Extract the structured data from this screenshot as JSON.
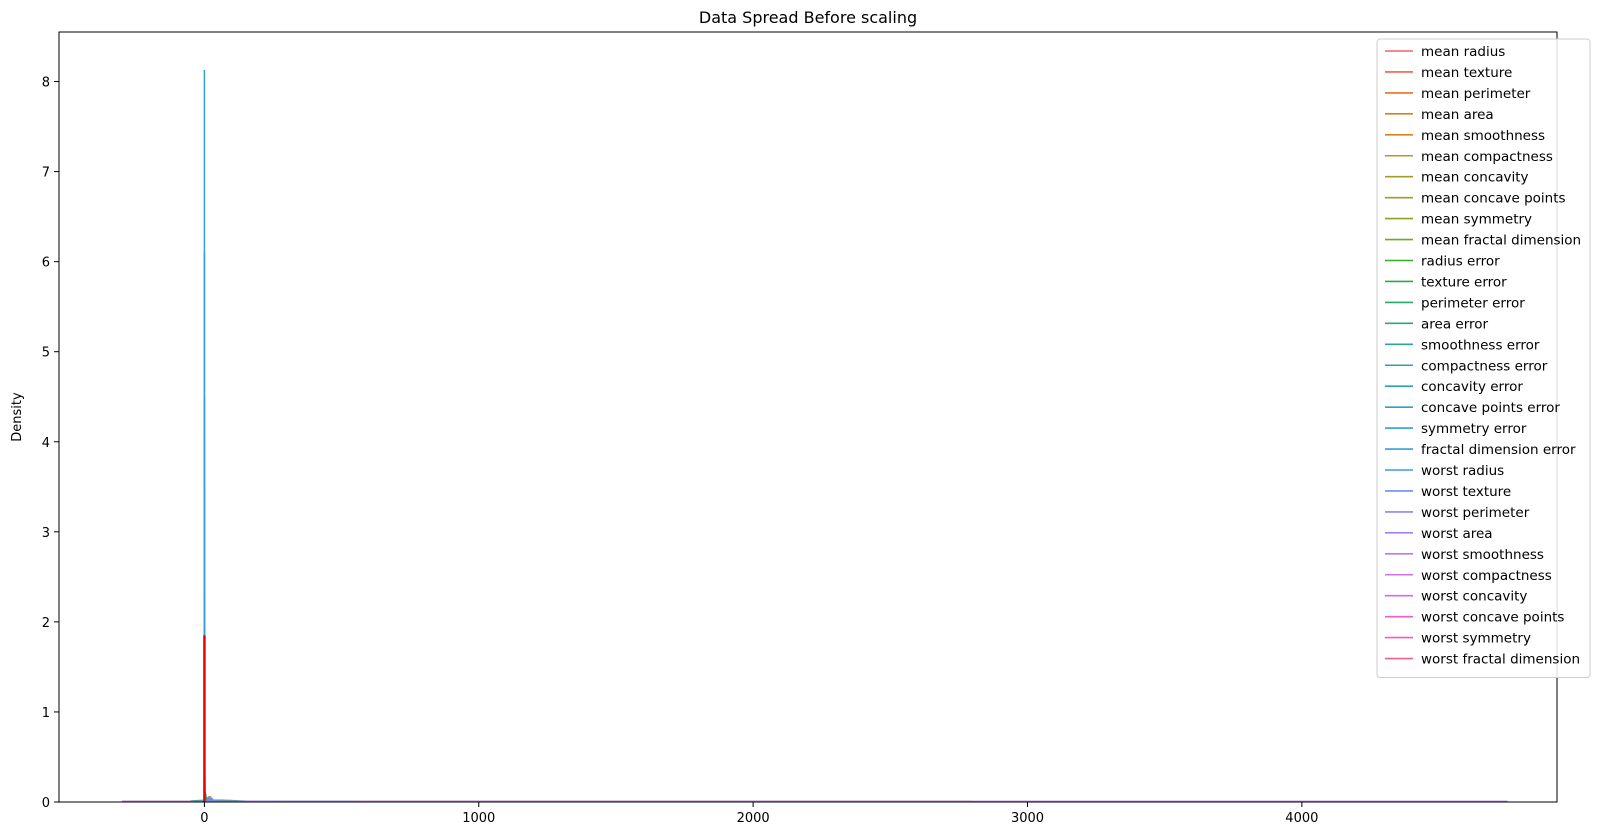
{
  "chart_data": {
    "type": "line",
    "title": "Data Spread Before scaling",
    "xlabel": "",
    "ylabel": "Density",
    "xlim": [
      -530,
      4930
    ],
    "ylim": [
      0,
      8.55
    ],
    "x_ticks": [
      0,
      1000,
      2000,
      3000,
      4000
    ],
    "y_ticks": [
      0,
      1,
      2,
      3,
      4,
      5,
      6,
      7,
      8
    ],
    "grid": false,
    "legend_position": "top-right",
    "series": [
      {
        "name": "mean radius",
        "color": "#f3616b",
        "peak_x": 14,
        "peak_y": 0.05,
        "extent": [
          2,
          34
        ]
      },
      {
        "name": "mean texture",
        "color": "#f06446",
        "peak_x": 19,
        "peak_y": 0.06,
        "extent": [
          5,
          45
        ]
      },
      {
        "name": "mean perimeter",
        "color": "#e87220",
        "peak_x": 92,
        "peak_y": 0.008,
        "extent": [
          20,
          210
        ]
      },
      {
        "name": "mean area",
        "color": "#de7d1c",
        "peak_x": 655,
        "peak_y": 0.0012,
        "extent": [
          -300,
          2800
        ]
      },
      {
        "name": "mean smoothness",
        "color": "#d6821e",
        "peak_x": 0.096,
        "peak_y": 0.4,
        "extent": [
          0.04,
          0.18
        ]
      },
      {
        "name": "mean compactness",
        "color": "#bd9426",
        "peak_x": 0.1,
        "peak_y": 0.3,
        "extent": [
          0,
          0.4
        ]
      },
      {
        "name": "mean concavity",
        "color": "#a89a25",
        "peak_x": 0.09,
        "peak_y": 0.3,
        "extent": [
          -0.1,
          0.5
        ]
      },
      {
        "name": "mean concave points",
        "color": "#9a9e25",
        "peak_x": 0.05,
        "peak_y": 0.4,
        "extent": [
          -0.05,
          0.25
        ]
      },
      {
        "name": "mean symmetry",
        "color": "#8aa325",
        "peak_x": 0.18,
        "peak_y": 0.6,
        "extent": [
          0.1,
          0.32
        ]
      },
      {
        "name": "mean fractal dimension",
        "color": "#6ea729",
        "peak_x": 0.063,
        "peak_y": 2.25,
        "extent": [
          0.04,
          0.1
        ]
      },
      {
        "name": "radius error",
        "color": "#34ab26",
        "peak_x": 0.4,
        "peak_y": 0.9,
        "extent": [
          0,
          3
        ]
      },
      {
        "name": "texture error",
        "color": "#2ba94f",
        "peak_x": 1.2,
        "peak_y": 0.3,
        "extent": [
          0,
          5
        ]
      },
      {
        "name": "perimeter error",
        "color": "#2aa76b",
        "peak_x": 2.9,
        "peak_y": 0.1,
        "extent": [
          0,
          22
        ]
      },
      {
        "name": "area error",
        "color": "#2ca682",
        "peak_x": 40,
        "peak_y": 0.02,
        "extent": [
          -50,
          550
        ]
      },
      {
        "name": "smoothness error",
        "color": "#2ea694",
        "peak_x": 0.007,
        "peak_y": 6.1,
        "extent": [
          0,
          0.03
        ]
      },
      {
        "name": "compactness error",
        "color": "#2da5a2",
        "peak_x": 0.025,
        "peak_y": 2.3,
        "extent": [
          0,
          0.14
        ]
      },
      {
        "name": "concavity error",
        "color": "#2da3b0",
        "peak_x": 0.03,
        "peak_y": 1.8,
        "extent": [
          0,
          0.4
        ]
      },
      {
        "name": "concave points error",
        "color": "#2fa2be",
        "peak_x": 0.012,
        "peak_y": 4.5,
        "extent": [
          0,
          0.05
        ]
      },
      {
        "name": "symmetry error",
        "color": "#30a1cc",
        "peak_x": 0.02,
        "peak_y": 4.0,
        "extent": [
          0,
          0.08
        ]
      },
      {
        "name": "fractal dimension error",
        "color": "#349fda",
        "peak_x": 0.004,
        "peak_y": 8.13,
        "extent": [
          0,
          0.03
        ]
      },
      {
        "name": "worst radius",
        "color": "#3d9ae5",
        "peak_x": 16,
        "peak_y": 0.04,
        "extent": [
          5,
          40
        ]
      },
      {
        "name": "worst texture",
        "color": "#6c8ef0",
        "peak_x": 25,
        "peak_y": 0.04,
        "extent": [
          8,
          52
        ]
      },
      {
        "name": "worst perimeter",
        "color": "#8c86f3",
        "peak_x": 107,
        "peak_y": 0.006,
        "extent": [
          30,
          270
        ]
      },
      {
        "name": "worst area",
        "color": "#a77ff5",
        "peak_x": 880,
        "peak_y": 0.0008,
        "extent": [
          -300,
          4750
        ]
      },
      {
        "name": "worst smoothness",
        "color": "#bd78f4",
        "peak_x": 0.13,
        "peak_y": 0.3,
        "extent": [
          0.05,
          0.25
        ]
      },
      {
        "name": "worst compactness",
        "color": "#d56eeb",
        "peak_x": 0.25,
        "peak_y": 0.2,
        "extent": [
          -0.1,
          1.1
        ]
      },
      {
        "name": "worst concavity",
        "color": "#e564d9",
        "peak_x": 0.27,
        "peak_y": 0.2,
        "extent": [
          -0.2,
          1.3
        ]
      },
      {
        "name": "worst concave points",
        "color": "#ef5fc4",
        "peak_x": 0.11,
        "peak_y": 0.35,
        "extent": [
          -0.05,
          0.3
        ]
      },
      {
        "name": "worst symmetry",
        "color": "#f25fab",
        "peak_x": 0.29,
        "peak_y": 0.3,
        "extent": [
          0.1,
          0.7
        ]
      },
      {
        "name": "worst fractal dimension",
        "color": "#f45f8e",
        "peak_x": 0.084,
        "peak_y": 1.85,
        "extent": [
          0.04,
          0.21
        ]
      }
    ]
  }
}
